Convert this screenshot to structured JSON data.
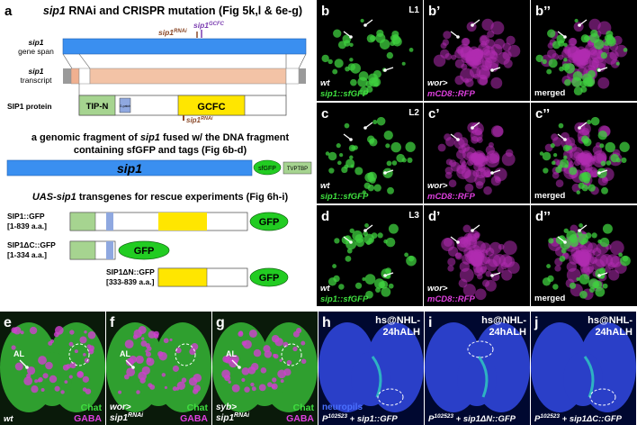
{
  "panel_a": {
    "label": "a",
    "title": [
      "sip1",
      " RNAi and CRISPR mutation (Fig 5k,l & 6e-g)"
    ],
    "alleles": [
      {
        "name": "sip1",
        "sup": "GCFC"
      },
      {
        "name": "sip1",
        "sup": "RNAi"
      }
    ],
    "tracks": [
      [
        "sip1",
        "gene span"
      ],
      [
        "sip1",
        "transcript"
      ]
    ],
    "protein": {
      "label": "SIP1 protein",
      "domains": [
        "TIP-N",
        "G-patch",
        "GCFC"
      ],
      "rnai": {
        "name": "sip1",
        "sup": "RNAi"
      }
    },
    "genomic": {
      "title": [
        "a genomic fragment of ",
        "sip1",
        " fused w/ the DNA fragment",
        "containing sfGFP and tags (Fig 6b-d)"
      ],
      "gene": "sip1",
      "tags": [
        "sfGFP",
        "TVPTBP"
      ]
    },
    "transgenes": {
      "title": [
        "UAS-sip1",
        " transgenes for rescue experiments (Fig 6h-i)"
      ],
      "constructs": [
        {
          "name": "SIP1::GFP",
          "range": "[1-839 a.a.]",
          "tag": "GFP"
        },
        {
          "name": "SIP1ΔC::GFP",
          "range": "[1-334 a.a.]",
          "tag": "GFP"
        },
        {
          "name": "SIP1ΔN::GFP",
          "range": "[333-839 a.a.]",
          "tag": "GFP"
        }
      ]
    }
  },
  "imaging": [
    {
      "label": "b",
      "stage": "L1",
      "genotype": [
        "wt",
        "sip1::sfGFP"
      ]
    },
    {
      "label": "b’",
      "genotype": [
        "wor>",
        "mCD8::RFP"
      ]
    },
    {
      "label": "b’’",
      "caption": "merged"
    },
    {
      "label": "c",
      "stage": "L2",
      "genotype": [
        "wt",
        "sip1::sfGFP"
      ]
    },
    {
      "label": "c’",
      "genotype": [
        "wor>",
        "mCD8::RFP"
      ]
    },
    {
      "label": "c’’",
      "caption": "merged"
    },
    {
      "label": "d",
      "stage": "L3",
      "genotype": [
        "wt",
        "sip1::sfGFP"
      ]
    },
    {
      "label": "d’",
      "genotype": [
        "wor>",
        "mCD8::RFP"
      ]
    },
    {
      "label": "d’’",
      "caption": "merged"
    }
  ],
  "brains": [
    {
      "label": "e",
      "annotation": "AL",
      "markers": [
        "Chat",
        "GABA"
      ],
      "genotype": [
        "wt"
      ]
    },
    {
      "label": "f",
      "annotation": "AL",
      "markers": [
        "Chat",
        "GABA"
      ],
      "genotype": [
        "wor>",
        "sip1",
        "RNAi"
      ]
    },
    {
      "label": "g",
      "annotation": "AL",
      "markers": [
        "Chat",
        "GABA"
      ],
      "genotype": [
        "syb>",
        "sip1",
        "RNAi"
      ]
    },
    {
      "label": "h",
      "condition": [
        "hs@NHL-",
        "24hALH"
      ],
      "stain": "neuropils",
      "genotype": [
        "P",
        "102523",
        " + sip1::GFP"
      ]
    },
    {
      "label": "i",
      "condition": [
        "hs@NHL-",
        "24hALH"
      ],
      "genotype": [
        "P",
        "102523",
        " + sip1ΔN::GFP"
      ]
    },
    {
      "label": "j",
      "condition": [
        "hs@NHL-",
        "24hALH"
      ],
      "genotype": [
        "P",
        "102523",
        " + sip1ΔC::GFP"
      ]
    }
  ]
}
